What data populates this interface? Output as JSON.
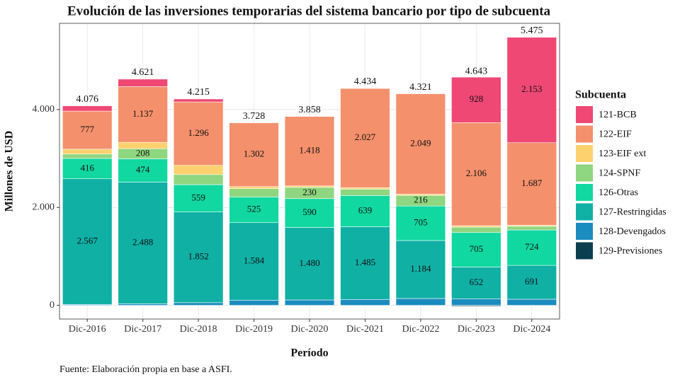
{
  "chart_data": {
    "type": "stacked_bar",
    "title": "Evolución de las inversiones temporarias del sistema bancario por tipo de subcuenta",
    "x_label": "Período",
    "y_label": "Millones de USD",
    "caption": "Fuente: Elaboración propia en base a ASFI.",
    "legend_title": "Subcuenta",
    "legend_position": "right",
    "grid": true,
    "categories": [
      "Dic-2016",
      "Dic-2017",
      "Dic-2018",
      "Dic-2019",
      "Dic-2020",
      "Dic-2021",
      "Dic-2022",
      "Dic-2023",
      "Dic-2024"
    ],
    "ylim": [
      -280,
      5760
    ],
    "yticks": [
      0,
      {
        "value": 2000,
        "label": "2.000"
      },
      {
        "value": 4000,
        "label": "4.000"
      }
    ],
    "series": [
      {
        "name": "121-BCB",
        "color": "#ef4874",
        "values": [
          108,
          154,
          60,
          0,
          0,
          3,
          0,
          928,
          2153
        ],
        "value_labels": [
          null,
          null,
          null,
          null,
          null,
          null,
          null,
          "928",
          "2.153"
        ]
      },
      {
        "name": "122-EIF",
        "color": "#f4906c",
        "values": [
          777,
          1137,
          1296,
          1302,
          1418,
          2027,
          2049,
          2106,
          1687
        ],
        "value_labels": [
          "777",
          "1.137",
          "1.296",
          "1.302",
          "1.418",
          "2.027",
          "2.049",
          "2.106",
          "1.687"
        ]
      },
      {
        "name": "123-EIF ext",
        "color": "#fdd26e",
        "values": [
          100,
          130,
          188,
          42,
          30,
          30,
          27,
          30,
          20
        ],
        "value_labels": [
          null,
          null,
          null,
          null,
          null,
          null,
          null,
          null,
          null
        ]
      },
      {
        "name": "124-SPNF",
        "color": "#8ed67f",
        "values": [
          89,
          208,
          205,
          170,
          230,
          130,
          216,
          110,
          75
        ],
        "value_labels": [
          null,
          "208",
          null,
          null,
          "230",
          null,
          "216",
          null,
          null
        ]
      },
      {
        "name": "126-Otras",
        "color": "#11d8a0",
        "values": [
          416,
          474,
          559,
          525,
          590,
          639,
          705,
          705,
          724
        ],
        "value_labels": [
          "416",
          "474",
          "559",
          "525",
          "590",
          "639",
          "705",
          "705",
          "724"
        ]
      },
      {
        "name": "127-Restringidas",
        "color": "#10b0a5",
        "values": [
          2567,
          2488,
          1852,
          1584,
          1480,
          1485,
          1184,
          652,
          691
        ],
        "value_labels": [
          "2.567",
          "2.488",
          "1.852",
          "1.584",
          "1.480",
          "1.485",
          "1.184",
          "652",
          "691"
        ]
      },
      {
        "name": "128-Devengados",
        "color": "#1b8cbf",
        "values": [
          18,
          30,
          55,
          105,
          110,
          120,
          140,
          130,
          125
        ],
        "value_labels": [
          null,
          null,
          null,
          null,
          null,
          null,
          null,
          null,
          null
        ]
      },
      {
        "name": "129-Previsiones",
        "color": "#0b3e4f",
        "values": [
          0,
          0,
          0,
          0,
          0,
          0,
          0,
          -18,
          0
        ],
        "value_labels": [
          null,
          null,
          null,
          null,
          null,
          null,
          null,
          null,
          null
        ]
      }
    ],
    "totals": {
      "values": [
        4076,
        4621,
        4215,
        3728,
        3858,
        4434,
        4321,
        4643,
        5475
      ],
      "value_labels": [
        "4.076",
        "4.621",
        "4.215",
        "3.728",
        "3.858",
        "4.434",
        "4.321",
        "4.643",
        "5.475"
      ]
    }
  }
}
